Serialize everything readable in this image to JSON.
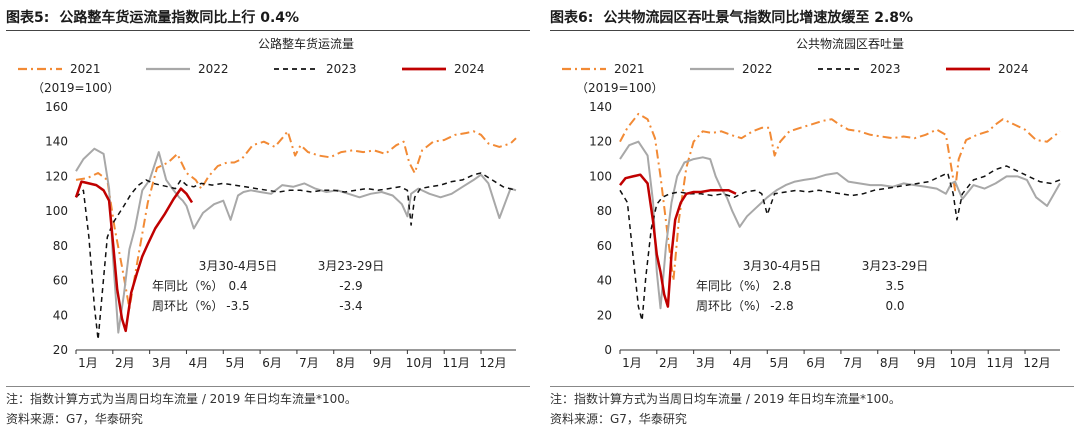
{
  "colors": {
    "s2021": "#F28A35",
    "s2022": "#A8A8A8",
    "s2023": "#111111",
    "s2024": "#C00000"
  },
  "panels": [
    {
      "fig_label": "图表5:",
      "heading": "公路整车货运流量指数同比上行 0.4%",
      "note": "注：指数计算方式为当周日均车流量 / 2019 年日均车流量*100。",
      "source": "资料来源：G7，华泰研究",
      "chart_data": {
        "type": "line",
        "title": "公路整车货运流量",
        "unit_label": "（2019=100）",
        "ylim": [
          20,
          160
        ],
        "yticks": [
          20,
          40,
          60,
          80,
          100,
          120,
          140,
          160
        ],
        "categories": [
          "1月",
          "2月",
          "3月",
          "4月",
          "5月",
          "6月",
          "7月",
          "8月",
          "9月",
          "10月",
          "11月",
          "12月"
        ],
        "xlim": [
          1,
          12.95
        ],
        "legend_position": "top",
        "series": [
          {
            "name": "2021",
            "style": "dashdot",
            "x": [
              1.0,
              1.3,
              1.6,
              1.85,
              2.05,
              2.25,
              2.45,
              2.7,
              2.95,
              3.2,
              3.5,
              3.75,
              4.0,
              4.25,
              4.4,
              4.6,
              4.85,
              5.1,
              5.3,
              5.5,
              5.8,
              6.1,
              6.4,
              6.6,
              6.75,
              6.95,
              7.1,
              7.3,
              7.6,
              7.9,
              8.2,
              8.5,
              8.8,
              9.1,
              9.4,
              9.7,
              9.9,
              10.05,
              10.2,
              10.4,
              10.7,
              11.0,
              11.3,
              11.6,
              11.8,
              12.0,
              12.2,
              12.5,
              12.8,
              12.95
            ],
            "y": [
              118,
              119,
              122,
              118,
              90,
              68,
              44,
              75,
              105,
              125,
              128,
              133,
              122,
              118,
              113,
              120,
              126,
              128,
              128,
              130,
              138,
              140,
              137,
              142,
              146,
              132,
              138,
              134,
              132,
              131,
              134,
              135,
              134,
              135,
              133,
              138,
              140,
              128,
              122,
              135,
              140,
              141,
              144,
              145,
              146,
              144,
              139,
              137,
              139,
              142
            ]
          },
          {
            "name": "2022",
            "style": "solid",
            "x": [
              1.0,
              1.2,
              1.5,
              1.75,
              1.9,
              2.0,
              2.15,
              2.3,
              2.45,
              2.6,
              2.8,
              3.0,
              3.25,
              3.45,
              3.65,
              3.8,
              3.9,
              4.0,
              4.2,
              4.45,
              4.75,
              5.0,
              5.2,
              5.4,
              5.55,
              5.75,
              6.0,
              6.3,
              6.6,
              6.9,
              7.2,
              7.5,
              7.8,
              8.1,
              8.4,
              8.7,
              9.0,
              9.3,
              9.6,
              9.85,
              10.0,
              10.1,
              10.3,
              10.6,
              10.9,
              11.2,
              11.5,
              11.8,
              12.0,
              12.2,
              12.5,
              12.8,
              12.95
            ],
            "y": [
              123,
              130,
              136,
              133,
              113,
              75,
              30,
              52,
              78,
              90,
              112,
              118,
              134,
              118,
              112,
              108,
              106,
              103,
              90,
              99,
              104,
              106,
              95,
              109,
              111,
              112,
              111,
              110,
              115,
              114,
              116,
              113,
              111,
              112,
              110,
              108,
              110,
              111,
              109,
              104,
              97,
              110,
              113,
              110,
              108,
              110,
              114,
              118,
              121,
              116,
              96,
              113,
              112
            ]
          },
          {
            "name": "2023",
            "style": "dashed",
            "x": [
              1.0,
              1.2,
              1.35,
              1.5,
              1.6,
              1.7,
              1.85,
              2.0,
              2.15,
              2.3,
              2.5,
              2.7,
              2.9,
              3.1,
              3.3,
              3.5,
              3.7,
              3.85,
              4.0,
              4.2,
              4.4,
              4.7,
              5.0,
              5.3,
              5.6,
              5.9,
              6.2,
              6.5,
              6.8,
              7.1,
              7.4,
              7.7,
              8.0,
              8.3,
              8.6,
              8.9,
              9.2,
              9.5,
              9.8,
              10.0,
              10.1,
              10.2,
              10.35,
              10.6,
              10.9,
              11.2,
              11.5,
              11.8,
              12.0,
              12.3,
              12.6,
              12.95
            ],
            "y": [
              108,
              112,
              85,
              45,
              26,
              50,
              85,
              93,
              98,
              103,
              110,
              115,
              118,
              116,
              115,
              114,
              113,
              118,
              115,
              114,
              116,
              115,
              116,
              115,
              114,
              113,
              112,
              111,
              112,
              112,
              111,
              112,
              112,
              111,
              112,
              113,
              112,
              113,
              114,
              112,
              92,
              108,
              113,
              114,
              115,
              117,
              118,
              121,
              122,
              118,
              114,
              112
            ]
          },
          {
            "name": "2024",
            "style": "solid-thick",
            "x": [
              1.0,
              1.15,
              1.35,
              1.55,
              1.75,
              1.9,
              2.02,
              2.12,
              2.25,
              2.35,
              2.5,
              2.65,
              2.8,
              2.95,
              3.15,
              3.4,
              3.65,
              3.85,
              4.0,
              4.15
            ],
            "y": [
              108,
              117,
              116,
              115,
              112,
              106,
              78,
              55,
              38,
              31,
              53,
              64,
              74,
              81,
              90,
              98,
              107,
              113,
              110,
              105
            ]
          }
        ],
        "annotations": {
          "col1_header": "3月30-4月5日",
          "col2_header": "3月23-29日",
          "rows": [
            {
              "label": "年同比（%）",
              "v1": "0.4",
              "v2": "-2.9"
            },
            {
              "label": "周环比（%）",
              "v1": "-3.5",
              "v2": "-3.4"
            }
          ]
        }
      }
    },
    {
      "fig_label": "图表6:",
      "heading": "公共物流园区吞吐景气指数同比增速放缓至 2.8%",
      "note": "注：指数计算方式为当周日均车流量 / 2019 年日均车流量*100。",
      "source": "资料来源：G7，华泰研究",
      "chart_data": {
        "type": "line",
        "title": "公共物流园区吞吐量",
        "unit_label": "（2019=100）",
        "ylim": [
          0,
          140
        ],
        "yticks": [
          0,
          20,
          40,
          60,
          80,
          100,
          120,
          140
        ],
        "categories": [
          "1月",
          "2月",
          "3月",
          "4月",
          "5月",
          "6月",
          "7月",
          "8月",
          "9月",
          "10月",
          "11月",
          "12月"
        ],
        "xlim": [
          1,
          12.95
        ],
        "legend_position": "top",
        "series": [
          {
            "name": "2021",
            "style": "dashdot",
            "x": [
              1.0,
              1.2,
              1.5,
              1.75,
              1.95,
              2.1,
              2.3,
              2.45,
              2.6,
              2.8,
              3.0,
              3.25,
              3.5,
              3.75,
              4.0,
              4.3,
              4.6,
              4.85,
              5.05,
              5.2,
              5.35,
              5.6,
              5.9,
              6.2,
              6.5,
              6.75,
              6.95,
              7.2,
              7.5,
              7.8,
              8.1,
              8.4,
              8.7,
              9.0,
              9.3,
              9.6,
              9.85,
              10.0,
              10.1,
              10.2,
              10.4,
              10.7,
              11.0,
              11.2,
              11.4,
              11.7,
              12.0,
              12.3,
              12.6,
              12.95
            ],
            "y": [
              120,
              128,
              136,
              133,
              122,
              100,
              65,
              40,
              75,
              105,
              120,
              126,
              125,
              126,
              124,
              122,
              126,
              128,
              128,
              112,
              120,
              126,
              128,
              130,
              132,
              133,
              130,
              127,
              126,
              124,
              123,
              122,
              123,
              122,
              124,
              127,
              124,
              105,
              92,
              110,
              121,
              124,
              126,
              130,
              133,
              130,
              127,
              121,
              120,
              126
            ]
          },
          {
            "name": "2022",
            "style": "solid",
            "x": [
              1.0,
              1.25,
              1.5,
              1.75,
              1.9,
              2.0,
              2.1,
              2.25,
              2.4,
              2.55,
              2.75,
              3.0,
              3.25,
              3.45,
              3.6,
              3.75,
              3.9,
              4.05,
              4.25,
              4.45,
              4.7,
              5.0,
              5.25,
              5.5,
              5.75,
              6.0,
              6.3,
              6.6,
              6.9,
              7.2,
              7.5,
              7.8,
              8.1,
              8.4,
              8.7,
              9.0,
              9.3,
              9.6,
              9.85,
              10.0,
              10.1,
              10.3,
              10.6,
              10.9,
              11.2,
              11.5,
              11.8,
              12.05,
              12.3,
              12.6,
              12.95
            ],
            "y": [
              110,
              118,
              120,
              112,
              85,
              45,
              24,
              60,
              85,
              100,
              108,
              110,
              111,
              110,
              100,
              93,
              88,
              80,
              71,
              77,
              82,
              88,
              92,
              95,
              97,
              98,
              99,
              101,
              102,
              97,
              96,
              95,
              95,
              94,
              96,
              95,
              94,
              93,
              90,
              96,
              97,
              87,
              95,
              93,
              96,
              100,
              100,
              98,
              88,
              83,
              96
            ]
          },
          {
            "name": "2023",
            "style": "dashed",
            "x": [
              1.0,
              1.2,
              1.35,
              1.5,
              1.6,
              1.7,
              1.85,
              2.0,
              2.15,
              2.35,
              2.6,
              2.9,
              3.2,
              3.5,
              3.8,
              4.1,
              4.4,
              4.7,
              4.85,
              5.0,
              5.2,
              5.5,
              5.8,
              6.1,
              6.4,
              6.7,
              7.0,
              7.3,
              7.6,
              7.9,
              8.2,
              8.5,
              8.8,
              9.1,
              9.4,
              9.7,
              9.9,
              10.05,
              10.15,
              10.3,
              10.6,
              10.9,
              11.2,
              11.5,
              11.8,
              12.1,
              12.4,
              12.7,
              12.95
            ],
            "y": [
              92,
              85,
              55,
              25,
              17,
              42,
              70,
              84,
              88,
              90,
              91,
              90,
              90,
              89,
              90,
              88,
              91,
              92,
              90,
              78,
              90,
              91,
              92,
              91,
              92,
              91,
              90,
              89,
              90,
              92,
              93,
              94,
              95,
              96,
              97,
              100,
              102,
              90,
              75,
              90,
              98,
              100,
              104,
              106,
              103,
              100,
              97,
              96,
              98
            ]
          },
          {
            "name": "2024",
            "style": "solid-thick",
            "x": [
              1.0,
              1.15,
              1.35,
              1.55,
              1.75,
              1.9,
              2.0,
              2.1,
              2.2,
              2.3,
              2.4,
              2.5,
              2.65,
              2.8,
              3.0,
              3.2,
              3.45,
              3.7,
              3.95,
              4.15
            ],
            "y": [
              95,
              99,
              100,
              101,
              96,
              74,
              55,
              45,
              32,
              25,
              55,
              75,
              85,
              90,
              91,
              91,
              92,
              92,
              92,
              90
            ]
          }
        ],
        "annotations": {
          "col1_header": "3月30-4月5日",
          "col2_header": "3月23-29日",
          "rows": [
            {
              "label": "年同比（%）",
              "v1": "2.8",
              "v2": "3.5"
            },
            {
              "label": "周环比（%）",
              "v1": "-2.8",
              "v2": "0.0"
            }
          ]
        }
      }
    }
  ]
}
